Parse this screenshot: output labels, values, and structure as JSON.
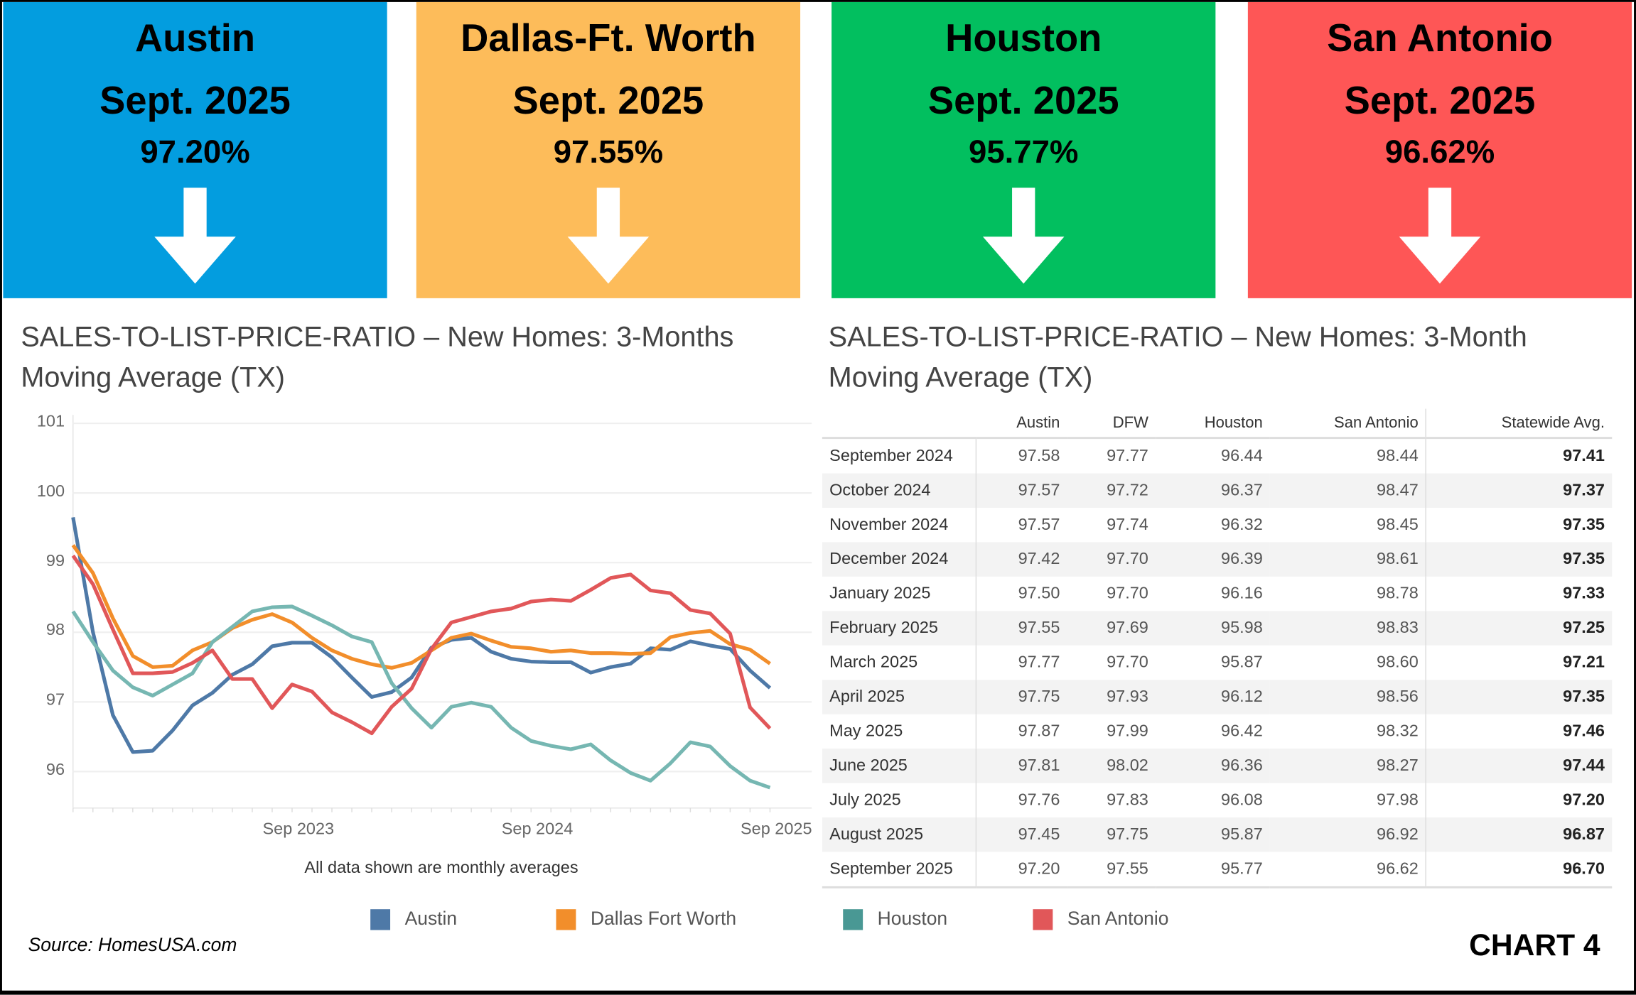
{
  "cards": [
    {
      "city": "Austin",
      "date": "Sept. 2025",
      "value": "97.20%",
      "color": "#039ddf",
      "trend": "down-arrow"
    },
    {
      "city": "Dallas-Ft. Worth",
      "date": "Sept. 2025",
      "value": "97.55%",
      "color": "#fdbc5a",
      "trend": "down-arrow"
    },
    {
      "city": "Houston",
      "date": "Sept. 2025",
      "value": "95.77%",
      "color": "#02bf5f",
      "trend": "down-arrow"
    },
    {
      "city": "San Antonio",
      "date": "Sept. 2025",
      "value": "96.62%",
      "color": "#fe5656",
      "trend": "down-arrow"
    }
  ],
  "left_title_1": "SALES-TO-LIST-PRICE-RATIO – New Homes: 3-Months",
  "left_title_2": "Moving Average (TX)",
  "right_title_1": "SALES-TO-LIST-PRICE-RATIO – New Homes:  3-Month",
  "right_title_2": "Moving Average (TX)",
  "chart_data": {
    "type": "line",
    "x": [
      "Oct 2022",
      "Nov 2022",
      "Dec 2022",
      "Jan 2023",
      "Feb 2023",
      "Mar 2023",
      "Apr 2023",
      "May 2023",
      "Jun 2023",
      "Jul 2023",
      "Aug 2023",
      "Sep 2023",
      "Oct 2023",
      "Nov 2023",
      "Dec 2023",
      "Jan 2024",
      "Feb 2024",
      "Mar 2024",
      "Apr 2024",
      "May 2024",
      "Jun 2024",
      "Jul 2024",
      "Aug 2024",
      "Sep 2024",
      "Oct 2024",
      "Nov 2024",
      "Dec 2024",
      "Jan 2025",
      "Feb 2025",
      "Mar 2025",
      "Apr 2025",
      "May 2025",
      "Jun 2025",
      "Jul 2025",
      "Aug 2025",
      "Sep 2025"
    ],
    "x_ticks": [
      "Sep 2023",
      "Sep 2024",
      "Sep 2025"
    ],
    "y_ticks": [
      96,
      97,
      98,
      99,
      100,
      101
    ],
    "ylim": [
      95.5,
      101.1
    ],
    "grid": true,
    "legend": "bottom",
    "note": "All data shown are monthly averages",
    "series": [
      {
        "name": "Austin",
        "color": "#4e79a7",
        "values": [
          99.65,
          98.0,
          96.81,
          96.28,
          96.3,
          96.59,
          96.95,
          97.13,
          97.39,
          97.54,
          97.8,
          97.85,
          97.85,
          97.64,
          97.35,
          97.07,
          97.14,
          97.35,
          97.78,
          97.89,
          97.92,
          97.72,
          97.62,
          97.58,
          97.57,
          97.57,
          97.42,
          97.5,
          97.55,
          97.77,
          97.75,
          97.87,
          97.81,
          97.76,
          97.45,
          97.2
        ]
      },
      {
        "name": "Dallas Fort Worth",
        "color": "#f28e2b",
        "values": [
          99.25,
          98.85,
          98.2,
          97.66,
          97.5,
          97.52,
          97.74,
          97.86,
          98.06,
          98.18,
          98.26,
          98.14,
          97.92,
          97.74,
          97.62,
          97.54,
          97.49,
          97.56,
          97.74,
          97.92,
          97.98,
          97.88,
          97.79,
          97.77,
          97.72,
          97.74,
          97.7,
          97.7,
          97.69,
          97.7,
          97.93,
          97.99,
          98.02,
          97.83,
          97.75,
          97.55
        ]
      },
      {
        "name": "Houston",
        "color": "#76b7b2",
        "legend_color": "#499894",
        "values": [
          98.3,
          97.86,
          97.45,
          97.21,
          97.09,
          97.25,
          97.41,
          97.86,
          98.08,
          98.3,
          98.36,
          98.37,
          98.24,
          98.1,
          97.94,
          97.86,
          97.27,
          96.91,
          96.63,
          96.93,
          96.99,
          96.93,
          96.63,
          96.44,
          96.37,
          96.32,
          96.39,
          96.16,
          95.98,
          95.87,
          96.12,
          96.42,
          96.36,
          96.08,
          95.87,
          95.77
        ]
      },
      {
        "name": "San Antonio",
        "color": "#e15759",
        "values": [
          99.1,
          98.69,
          98.04,
          97.41,
          97.41,
          97.43,
          97.56,
          97.74,
          97.33,
          97.33,
          96.91,
          97.25,
          97.15,
          96.85,
          96.71,
          96.55,
          96.93,
          97.19,
          97.76,
          98.14,
          98.22,
          98.3,
          98.34,
          98.44,
          98.47,
          98.45,
          98.61,
          98.78,
          98.83,
          98.6,
          98.56,
          98.32,
          98.27,
          97.98,
          96.92,
          96.62
        ]
      }
    ]
  },
  "table": {
    "headers": [
      "",
      "Austin",
      "DFW",
      "Houston",
      "San Antonio",
      "Statewide Avg."
    ],
    "rows": [
      [
        "September 2024",
        "97.58",
        "97.77",
        "96.44",
        "98.44",
        "97.41"
      ],
      [
        "October 2024",
        "97.57",
        "97.72",
        "96.37",
        "98.47",
        "97.37"
      ],
      [
        "November 2024",
        "97.57",
        "97.74",
        "96.32",
        "98.45",
        "97.35"
      ],
      [
        "December 2024",
        "97.42",
        "97.70",
        "96.39",
        "98.61",
        "97.35"
      ],
      [
        "January 2025",
        "97.50",
        "97.70",
        "96.16",
        "98.78",
        "97.33"
      ],
      [
        "February 2025",
        "97.55",
        "97.69",
        "95.98",
        "98.83",
        "97.25"
      ],
      [
        "March 2025",
        "97.77",
        "97.70",
        "95.87",
        "98.60",
        "97.21"
      ],
      [
        "April 2025",
        "97.75",
        "97.93",
        "96.12",
        "98.56",
        "97.35"
      ],
      [
        "May 2025",
        "97.87",
        "97.99",
        "96.42",
        "98.32",
        "97.46"
      ],
      [
        "June 2025",
        "97.81",
        "98.02",
        "96.36",
        "98.27",
        "97.44"
      ],
      [
        "July 2025",
        "97.76",
        "97.83",
        "96.08",
        "97.98",
        "97.20"
      ],
      [
        "August 2025",
        "97.45",
        "97.75",
        "95.87",
        "96.92",
        "96.87"
      ],
      [
        "September 2025",
        "97.20",
        "97.55",
        "95.77",
        "96.62",
        "96.70"
      ]
    ]
  },
  "source": "Source: HomesUSA.com",
  "chart_label": "CHART 4"
}
